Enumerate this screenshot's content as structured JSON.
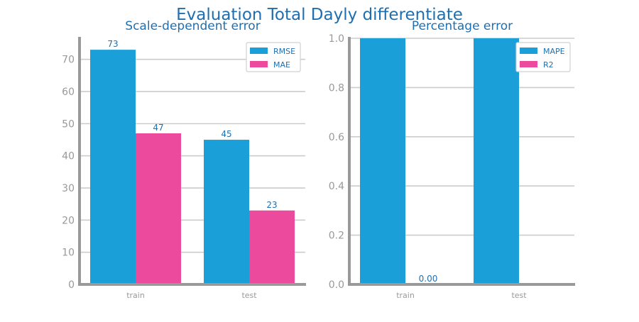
{
  "figure": {
    "title": "Evaluation Total Dayly differentiate",
    "title_color": "#1f6fb0",
    "axis_color": "#999999",
    "grid_color": "#cccccc",
    "label_color": "#1f6fb0"
  },
  "chart_data": [
    {
      "type": "bar",
      "title": "Scale-dependent error",
      "categories": [
        "train",
        "test"
      ],
      "series": [
        {
          "name": "RMSE",
          "values": [
            73,
            45
          ],
          "labels": [
            "73",
            "45"
          ],
          "color": "#1a9fd8"
        },
        {
          "name": "MAE",
          "values": [
            47,
            23
          ],
          "labels": [
            "47",
            "23"
          ],
          "color": "#ec4a9c"
        }
      ],
      "yticks": [
        0,
        10,
        20,
        30,
        40,
        50,
        60,
        70
      ],
      "ytick_labels": [
        "0",
        "10",
        "20",
        "30",
        "40",
        "50",
        "60",
        "70"
      ],
      "ylim": [
        0,
        77
      ],
      "grid": true,
      "legend": "top-right"
    },
    {
      "type": "bar",
      "title": "Percentage error",
      "categories": [
        "train",
        "test"
      ],
      "series": [
        {
          "name": "MAPE",
          "values": [
            1.0,
            1.0
          ],
          "labels": [
            "",
            ""
          ],
          "color": "#1a9fd8"
        },
        {
          "name": "R2",
          "values": [
            0.0,
            0.0
          ],
          "labels": [
            "0.00",
            ""
          ],
          "color": "#ec4a9c"
        }
      ],
      "yticks": [
        0,
        0.2,
        0.4,
        0.6,
        0.8,
        1.0
      ],
      "ytick_labels": [
        "0.0",
        "0.2",
        "0.4",
        "0.6",
        "0.8",
        "1.0"
      ],
      "ylim": [
        0,
        1.0
      ],
      "grid": true,
      "legend": "top-right"
    }
  ]
}
